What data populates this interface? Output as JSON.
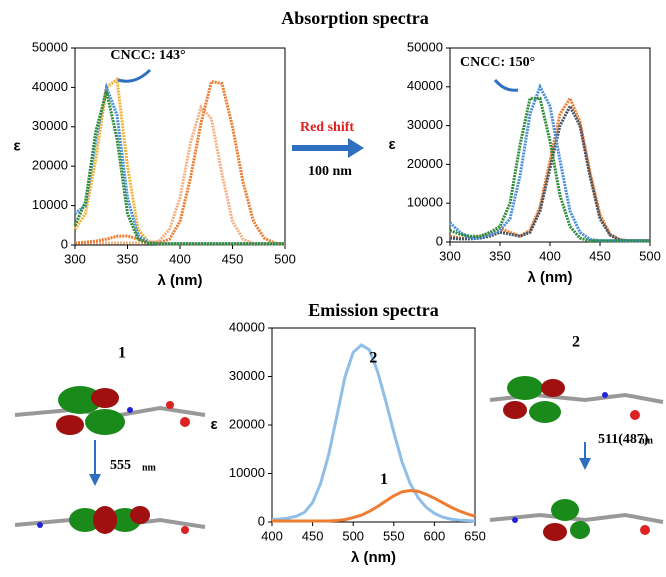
{
  "section_titles": {
    "absorption": "Absorption spectra"
  },
  "red_shift": {
    "label": "Red shift",
    "amount": "100 nm"
  },
  "molecules": [
    {
      "label": "1",
      "transition": "555",
      "unit": "nm"
    },
    {
      "label": "2",
      "transition": "511(487)",
      "unit": "nm"
    }
  ],
  "chart_data": [
    {
      "type": "line",
      "annotation": "CNCC: 143°",
      "xlabel": "λ (nm)",
      "ylabel": "ε",
      "x": [
        300,
        310,
        320,
        330,
        340,
        350,
        360,
        370,
        380,
        390,
        400,
        410,
        420,
        430,
        440,
        450,
        460,
        470,
        480,
        490,
        500
      ],
      "xlim": [
        300,
        500
      ],
      "xticks": [
        300,
        350,
        400,
        450,
        500
      ],
      "ylim": [
        0,
        50000
      ],
      "yticks": [
        0,
        10000,
        20000,
        30000,
        40000,
        50000
      ],
      "series": [
        {
          "color": "#f4b183",
          "values": [
            500,
            500,
            500,
            500,
            500,
            500,
            500,
            500,
            1000,
            4000,
            12000,
            26000,
            35000,
            32000,
            18000,
            6000,
            1500,
            400,
            300,
            300,
            300
          ]
        },
        {
          "color": "#ed7d31",
          "values": [
            500,
            700,
            1000,
            1500,
            2200,
            2300,
            1500,
            800,
            500,
            1500,
            6000,
            17000,
            31000,
            41500,
            41000,
            30000,
            16000,
            6000,
            1800,
            500,
            200
          ]
        },
        {
          "color": "#f2b233",
          "values": [
            4000,
            8000,
            22000,
            40000,
            42000,
            20000,
            4000,
            800,
            300,
            300,
            300,
            300,
            300,
            300,
            300,
            300,
            300,
            300,
            300,
            300,
            300
          ]
        },
        {
          "color": "#4a90d9",
          "values": [
            8000,
            10000,
            27000,
            40000,
            33000,
            12000,
            2500,
            600,
            300,
            300,
            300,
            300,
            300,
            300,
            300,
            300,
            300,
            300,
            300,
            300,
            300
          ]
        },
        {
          "color": "#2e8b3a",
          "values": [
            5000,
            11000,
            29000,
            39000,
            27000,
            8000,
            1500,
            400,
            300,
            300,
            300,
            300,
            300,
            300,
            300,
            300,
            300,
            300,
            300,
            300,
            300
          ]
        }
      ]
    },
    {
      "type": "line",
      "annotation": "CNCC: 150°",
      "xlabel": "λ (nm)",
      "ylabel": "ε",
      "x": [
        300,
        310,
        320,
        330,
        340,
        350,
        360,
        370,
        380,
        390,
        400,
        410,
        420,
        430,
        440,
        450,
        460,
        470,
        480,
        490,
        500
      ],
      "xlim": [
        300,
        500
      ],
      "xticks": [
        300,
        350,
        400,
        450,
        500
      ],
      "ylim": [
        0,
        50000
      ],
      "yticks": [
        0,
        10000,
        20000,
        30000,
        40000,
        50000
      ],
      "series": [
        {
          "color": "#ed7d31",
          "values": [
            1500,
            1000,
            1000,
            1500,
            2000,
            3500,
            2500,
            1500,
            3000,
            9000,
            21000,
            33000,
            37000,
            31000,
            18000,
            7000,
            2000,
            600,
            300,
            300,
            300
          ]
        },
        {
          "color": "#44546a",
          "values": [
            1000,
            800,
            800,
            1000,
            1500,
            2500,
            2000,
            1500,
            2500,
            8000,
            19000,
            30000,
            35000,
            30000,
            17000,
            6000,
            1800,
            500,
            300,
            300,
            300
          ]
        },
        {
          "color": "#4a90d9",
          "values": [
            5000,
            2500,
            1000,
            1000,
            2000,
            3000,
            6000,
            17000,
            33000,
            40000,
            35000,
            21000,
            8000,
            2500,
            700,
            300,
            300,
            300,
            300,
            300,
            300
          ]
        },
        {
          "color": "#2e8b3a",
          "values": [
            3000,
            2000,
            1500,
            1500,
            2500,
            4000,
            10000,
            25000,
            37000,
            37000,
            26000,
            12000,
            4000,
            1000,
            300,
            300,
            300,
            300,
            300,
            300,
            300
          ]
        }
      ]
    },
    {
      "type": "line",
      "title": "Emission spectra",
      "xlabel": "λ (nm)",
      "ylabel": "ε",
      "x": [
        400,
        410,
        420,
        430,
        440,
        450,
        460,
        470,
        480,
        490,
        500,
        510,
        520,
        530,
        540,
        550,
        560,
        570,
        580,
        590,
        600,
        610,
        620,
        630,
        640,
        650
      ],
      "xlim": [
        400,
        650
      ],
      "xticks": [
        400,
        450,
        500,
        550,
        600,
        650
      ],
      "ylim": [
        0,
        40000
      ],
      "yticks": [
        0,
        10000,
        20000,
        30000,
        40000
      ],
      "series": [
        {
          "name": "2",
          "color": "#8fbfe8",
          "values": [
            500,
            600,
            800,
            1200,
            2000,
            4000,
            8000,
            14000,
            22000,
            30000,
            35000,
            36500,
            35500,
            31000,
            25000,
            18500,
            12500,
            8000,
            5000,
            3000,
            1800,
            1000,
            600,
            400,
            300,
            200
          ]
        },
        {
          "name": "1",
          "color": "#ed7d31",
          "values": [
            200,
            200,
            200,
            200,
            200,
            200,
            200,
            200,
            300,
            500,
            900,
            1400,
            2200,
            3200,
            4300,
            5400,
            6200,
            6500,
            6300,
            5700,
            4900,
            4000,
            3100,
            2300,
            1700,
            1200
          ]
        }
      ]
    }
  ]
}
